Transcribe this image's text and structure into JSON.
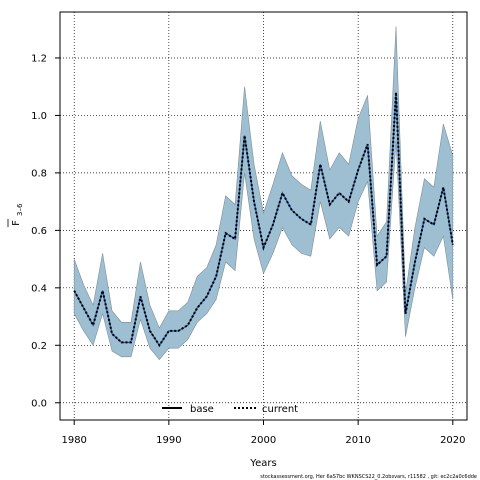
{
  "chart_data": {
    "type": "line",
    "title": "",
    "xlabel": "Years",
    "ylabel_main": "F",
    "ylabel_sub": "3–6",
    "xlim": [
      1978.5,
      2021.5
    ],
    "ylim": [
      -0.06,
      1.36
    ],
    "xticks": [
      1980,
      1990,
      2000,
      2010,
      2020
    ],
    "yticks": [
      0.0,
      0.2,
      0.4,
      0.6,
      0.8,
      1.0,
      1.2
    ],
    "ytick_labels": [
      "0.0",
      "0.2",
      "0.4",
      "0.6",
      "0.8",
      "1.0",
      "1.2"
    ],
    "grid": true,
    "legend_position": "bottom-center",
    "series": [
      {
        "name": "base",
        "style": "solid",
        "color": "#000000",
        "x": [
          1980,
          1981,
          1982,
          1983,
          1984,
          1985,
          1986,
          1987,
          1988,
          1989,
          1990,
          1991,
          1992,
          1993,
          1994,
          1995,
          1996,
          1997,
          1998,
          1999,
          2000,
          2001,
          2002,
          2003,
          2004,
          2005,
          2006,
          2007,
          2008,
          2009,
          2010,
          2011,
          2012,
          2013,
          2014,
          2015,
          2016,
          2017,
          2018,
          2019,
          2020
        ],
        "values": [
          0.39,
          0.33,
          0.27,
          0.39,
          0.24,
          0.21,
          0.21,
          0.37,
          0.25,
          0.2,
          0.25,
          0.25,
          0.27,
          0.33,
          0.37,
          0.44,
          0.59,
          0.57,
          0.93,
          0.7,
          0.54,
          0.62,
          0.73,
          0.67,
          0.64,
          0.62,
          0.83,
          0.69,
          0.73,
          0.7,
          0.81,
          0.9,
          0.48,
          0.51,
          1.08,
          0.31,
          0.49,
          0.64,
          0.62,
          0.75,
          0.55
        ]
      },
      {
        "name": "current",
        "style": "dotted",
        "color": "#000000",
        "x": [
          1980,
          1981,
          1982,
          1983,
          1984,
          1985,
          1986,
          1987,
          1988,
          1989,
          1990,
          1991,
          1992,
          1993,
          1994,
          1995,
          1996,
          1997,
          1998,
          1999,
          2000,
          2001,
          2002,
          2003,
          2004,
          2005,
          2006,
          2007,
          2008,
          2009,
          2010,
          2011,
          2012,
          2013,
          2014,
          2015,
          2016,
          2017,
          2018,
          2019,
          2020
        ],
        "values": [
          0.39,
          0.33,
          0.27,
          0.39,
          0.24,
          0.21,
          0.21,
          0.37,
          0.25,
          0.2,
          0.25,
          0.25,
          0.27,
          0.33,
          0.37,
          0.44,
          0.59,
          0.57,
          0.93,
          0.7,
          0.54,
          0.62,
          0.73,
          0.67,
          0.64,
          0.62,
          0.83,
          0.69,
          0.73,
          0.7,
          0.81,
          0.9,
          0.48,
          0.51,
          1.08,
          0.31,
          0.49,
          0.64,
          0.62,
          0.75,
          0.55
        ],
        "upper": [
          0.5,
          0.41,
          0.34,
          0.52,
          0.32,
          0.28,
          0.28,
          0.49,
          0.34,
          0.26,
          0.32,
          0.32,
          0.35,
          0.44,
          0.47,
          0.55,
          0.72,
          0.69,
          1.1,
          0.83,
          0.66,
          0.76,
          0.87,
          0.79,
          0.76,
          0.74,
          0.98,
          0.81,
          0.87,
          0.83,
          0.99,
          1.07,
          0.58,
          0.63,
          1.31,
          0.38,
          0.61,
          0.78,
          0.75,
          0.97,
          0.86
        ],
        "lower": [
          0.31,
          0.25,
          0.2,
          0.31,
          0.18,
          0.16,
          0.16,
          0.29,
          0.19,
          0.15,
          0.19,
          0.19,
          0.22,
          0.28,
          0.31,
          0.36,
          0.49,
          0.46,
          0.8,
          0.57,
          0.45,
          0.52,
          0.61,
          0.55,
          0.52,
          0.51,
          0.7,
          0.57,
          0.61,
          0.58,
          0.7,
          0.77,
          0.39,
          0.42,
          0.91,
          0.23,
          0.4,
          0.54,
          0.51,
          0.58,
          0.36
        ],
        "band_color": "#9dbfd1"
      }
    ]
  },
  "footer": "stockassessment.org,  Her  6aS7bc  WKNSCS22_0.2obsvars,  r11582 ,  git:  ec2c2a0c6dde"
}
